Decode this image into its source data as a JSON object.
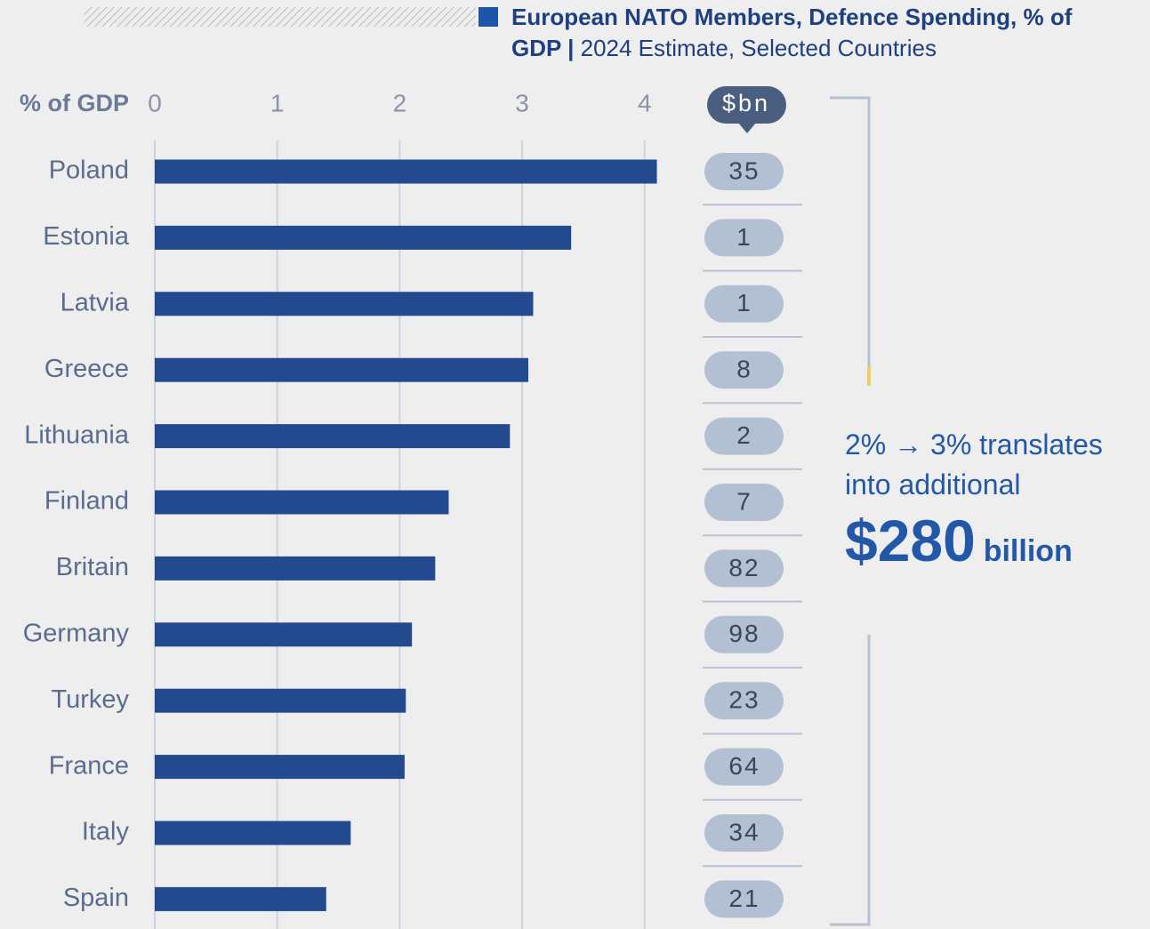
{
  "chart_data": {
    "type": "bar",
    "title": "European NATO Members, Defence Spending, % of GDP |",
    "subtitle": "2024 Estimate, Selected Countries",
    "xlabel": "% of GDP",
    "categories": [
      "Poland",
      "Estonia",
      "Latvia",
      "Greece",
      "Lithuania",
      "Finland",
      "Britain",
      "Germany",
      "Turkey",
      "France",
      "Italy",
      "Spain"
    ],
    "values": [
      4.1,
      3.4,
      3.09,
      3.05,
      2.9,
      2.4,
      2.29,
      2.1,
      2.05,
      2.04,
      1.6,
      1.4
    ],
    "color": "#234a8f",
    "xlim": [
      0,
      4.5
    ],
    "xticks": [
      0,
      1,
      2,
      3,
      4
    ],
    "grid": true,
    "spend_header": "$bn",
    "spend": [
      35,
      1,
      1,
      8,
      2,
      7,
      82,
      98,
      23,
      64,
      34,
      21
    ],
    "annotation": {
      "text": "2% → 3% translates into additional",
      "amount": "$280",
      "unit": "billion"
    }
  }
}
